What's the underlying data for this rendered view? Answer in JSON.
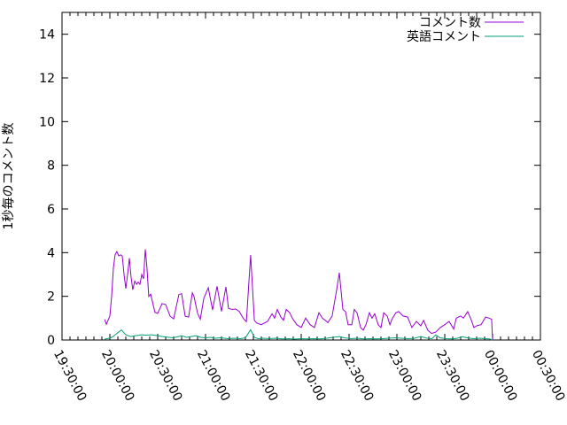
{
  "window": {
    "background": "#ffffff"
  },
  "chart_data": {
    "type": "line",
    "title": "",
    "xlabel": "",
    "ylabel": "1秒毎のコメント数",
    "grid": false,
    "legend_position": "top-right-inside",
    "axis_color": "#000000",
    "text_color": "#000000",
    "x_axis": {
      "tick_labels": [
        "19:30:00",
        "20:00:00",
        "20:30:00",
        "21:00:00",
        "21:30:00",
        "22:00:00",
        "22:30:00",
        "23:00:00",
        "23:30:00",
        "00:00:00",
        "00:30:00"
      ],
      "major_interval_minutes": 30,
      "minor_interval_minutes": 5,
      "range_minutes_from_first_tick": [
        0,
        300
      ],
      "label_rotation_degrees": 62
    },
    "y_axis": {
      "ticks": [
        0,
        2,
        4,
        6,
        8,
        10,
        12,
        14
      ],
      "range": [
        0,
        15
      ]
    },
    "series": [
      {
        "name": "コメント数",
        "color": "#9400d3",
        "points_minutes_value": [
          [
            26.7,
            0.95
          ],
          [
            27.8,
            0.72
          ],
          [
            30,
            1.1
          ],
          [
            31.1,
            2
          ],
          [
            32.2,
            3.3
          ],
          [
            33.3,
            3.9
          ],
          [
            34.4,
            4.05
          ],
          [
            35.6,
            3.85
          ],
          [
            36.7,
            3.9
          ],
          [
            37.8,
            3.85
          ],
          [
            38.9,
            3
          ],
          [
            40,
            2.35
          ],
          [
            41.1,
            3
          ],
          [
            42.2,
            3.75
          ],
          [
            43.3,
            2.9
          ],
          [
            44.4,
            2.3
          ],
          [
            45.6,
            2.7
          ],
          [
            46.7,
            2.55
          ],
          [
            47.8,
            2.65
          ],
          [
            48.9,
            2.55
          ],
          [
            50,
            3
          ],
          [
            51.1,
            2.8
          ],
          [
            52.2,
            4.15
          ],
          [
            53.3,
            3.3
          ],
          [
            54.4,
            2
          ],
          [
            55.6,
            2.1
          ],
          [
            58.3,
            1.26
          ],
          [
            60,
            1.22
          ],
          [
            62.8,
            1.67
          ],
          [
            65,
            1.62
          ],
          [
            67.8,
            1.09
          ],
          [
            70,
            0.97
          ],
          [
            73.3,
            2.08
          ],
          [
            75,
            2.12
          ],
          [
            77.2,
            1.09
          ],
          [
            79.4,
            1.05
          ],
          [
            81.7,
            2.16
          ],
          [
            82.8,
            1.99
          ],
          [
            85,
            1.22
          ],
          [
            86.7,
            0.95
          ],
          [
            88.9,
            1.9
          ],
          [
            91.7,
            2.39
          ],
          [
            94.4,
            1.38
          ],
          [
            97.2,
            2.46
          ],
          [
            100,
            1.31
          ],
          [
            102.8,
            2.43
          ],
          [
            104.4,
            1.45
          ],
          [
            106.7,
            1.4
          ],
          [
            108.9,
            1.42
          ],
          [
            111.1,
            1.31
          ],
          [
            113.9,
            0.97
          ],
          [
            115.6,
            0.84
          ],
          [
            118.3,
            3.89
          ],
          [
            120.6,
            0.9
          ],
          [
            122.2,
            0.77
          ],
          [
            125,
            0.7
          ],
          [
            128.9,
            0.85
          ],
          [
            131.7,
            1.2
          ],
          [
            133.3,
            1
          ],
          [
            135,
            1.4
          ],
          [
            137.2,
            1.05
          ],
          [
            138.9,
            0.9
          ],
          [
            140.6,
            1.4
          ],
          [
            142.8,
            1.25
          ],
          [
            144.4,
            1
          ],
          [
            147.2,
            0.7
          ],
          [
            150,
            0.57
          ],
          [
            152.8,
            1
          ],
          [
            155.6,
            0.7
          ],
          [
            158.3,
            0.57
          ],
          [
            161.1,
            1.25
          ],
          [
            163.3,
            1
          ],
          [
            166.7,
            0.8
          ],
          [
            169.4,
            1.1
          ],
          [
            172.2,
            2.3
          ],
          [
            173.9,
            3.08
          ],
          [
            176.1,
            1.4
          ],
          [
            177.8,
            1.3
          ],
          [
            179.4,
            0.7
          ],
          [
            181.7,
            0.7
          ],
          [
            183.3,
            1.4
          ],
          [
            185,
            1.25
          ],
          [
            187.2,
            0.57
          ],
          [
            188.9,
            0.45
          ],
          [
            190.6,
            0.7
          ],
          [
            192.8,
            1.25
          ],
          [
            194.4,
            1
          ],
          [
            196.1,
            1.2
          ],
          [
            198.3,
            0.7
          ],
          [
            200,
            0.57
          ],
          [
            201.7,
            1.25
          ],
          [
            203.9,
            1.1
          ],
          [
            205.6,
            0.7
          ],
          [
            207.2,
            1
          ],
          [
            209.4,
            1.25
          ],
          [
            211.1,
            1.3
          ],
          [
            213.9,
            1.1
          ],
          [
            216.7,
            1.05
          ],
          [
            219.4,
            0.57
          ],
          [
            222.2,
            0.85
          ],
          [
            225,
            0.65
          ],
          [
            226.7,
            0.9
          ],
          [
            229.4,
            0.45
          ],
          [
            231.7,
            0.3
          ],
          [
            234.4,
            0.36
          ],
          [
            237.2,
            0.57
          ],
          [
            240,
            0.7
          ],
          [
            242.8,
            0.85
          ],
          [
            245.6,
            0.5
          ],
          [
            247.2,
            1
          ],
          [
            250,
            1.1
          ],
          [
            251.7,
            1
          ],
          [
            254.4,
            1.3
          ],
          [
            256.7,
            0.9
          ],
          [
            258.3,
            0.57
          ],
          [
            260,
            0.65
          ],
          [
            262.8,
            0.7
          ],
          [
            265.6,
            1.05
          ],
          [
            267.8,
            1
          ],
          [
            269.4,
            0.95
          ],
          [
            270,
            0
          ]
        ]
      },
      {
        "name": "英語コメント",
        "color": "#009e73",
        "points_minutes_value": [
          [
            26.7,
            0.04
          ],
          [
            30,
            0.08
          ],
          [
            32,
            0.16
          ],
          [
            34,
            0.28
          ],
          [
            37.2,
            0.46
          ],
          [
            40,
            0.24
          ],
          [
            43,
            0.16
          ],
          [
            46,
            0.2
          ],
          [
            50,
            0.24
          ],
          [
            53,
            0.22
          ],
          [
            56,
            0.24
          ],
          [
            60,
            0.2
          ],
          [
            63,
            0.16
          ],
          [
            67,
            0.12
          ],
          [
            70,
            0.1
          ],
          [
            73,
            0.16
          ],
          [
            75,
            0.2
          ],
          [
            78,
            0.12
          ],
          [
            81,
            0.16
          ],
          [
            84,
            0.2
          ],
          [
            87,
            0.12
          ],
          [
            90,
            0.1
          ],
          [
            93,
            0.12
          ],
          [
            96,
            0.08
          ],
          [
            100,
            0.1
          ],
          [
            104,
            0.06
          ],
          [
            108,
            0.08
          ],
          [
            112,
            0.06
          ],
          [
            115,
            0.1
          ],
          [
            118.3,
            0.47
          ],
          [
            120.6,
            0.12
          ],
          [
            123,
            0.06
          ],
          [
            126,
            0.08
          ],
          [
            130,
            0.06
          ],
          [
            134,
            0.08
          ],
          [
            138,
            0.05
          ],
          [
            142,
            0.06
          ],
          [
            146,
            0.04
          ],
          [
            150,
            0.06
          ],
          [
            154,
            0.05
          ],
          [
            158,
            0.06
          ],
          [
            162,
            0.05
          ],
          [
            166,
            0.08
          ],
          [
            170,
            0.12
          ],
          [
            174,
            0.16
          ],
          [
            177,
            0.1
          ],
          [
            181,
            0.06
          ],
          [
            185,
            0.08
          ],
          [
            189,
            0.05
          ],
          [
            193,
            0.06
          ],
          [
            197,
            0.05
          ],
          [
            201,
            0.06
          ],
          [
            205,
            0.08
          ],
          [
            209,
            0.1
          ],
          [
            213,
            0.08
          ],
          [
            217,
            0.06
          ],
          [
            221,
            0.08
          ],
          [
            225,
            0.16
          ],
          [
            229,
            0.08
          ],
          [
            232,
            0.06
          ],
          [
            234.4,
            0.24
          ],
          [
            237,
            0.1
          ],
          [
            241,
            0.06
          ],
          [
            245,
            0.05
          ],
          [
            248,
            0.08
          ],
          [
            251,
            0.15
          ],
          [
            254,
            0.1
          ],
          [
            258,
            0.06
          ],
          [
            262,
            0.08
          ],
          [
            265,
            0.06
          ],
          [
            268,
            0.05
          ],
          [
            270,
            0
          ]
        ]
      }
    ]
  }
}
